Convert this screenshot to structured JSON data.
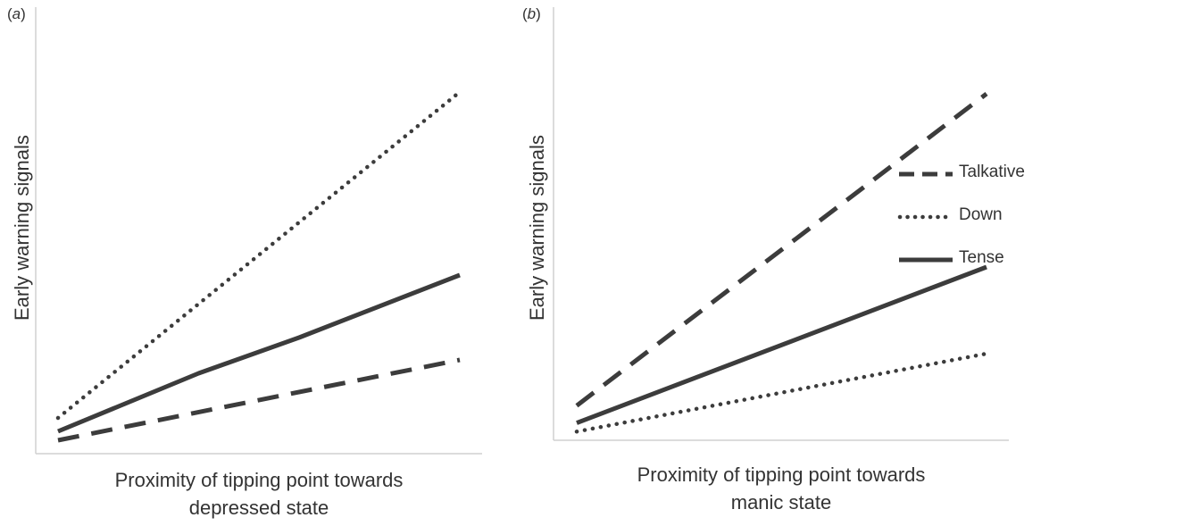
{
  "chart_data": [
    {
      "type": "line",
      "panel_label": "a",
      "ylabel": "Early warning signals",
      "xlabel_lines": [
        "Proximity of tipping point towards",
        "depressed state"
      ],
      "xlim": [
        0,
        1
      ],
      "ylim": [
        0,
        1
      ],
      "series": [
        {
          "name": "Talkative",
          "style": "dashed",
          "x": [
            0,
            1
          ],
          "y": [
            0.03,
            0.21
          ]
        },
        {
          "name": "Down",
          "style": "dotted",
          "x": [
            0,
            1
          ],
          "y": [
            0.08,
            0.81
          ]
        },
        {
          "name": "Tense",
          "style": "solid",
          "x": [
            0,
            0.35,
            0.6,
            1
          ],
          "y": [
            0.05,
            0.18,
            0.26,
            0.4
          ]
        }
      ]
    },
    {
      "type": "line",
      "panel_label": "b",
      "ylabel": "Early warning signals",
      "xlabel_lines": [
        "Proximity of tipping point towards",
        "manic state"
      ],
      "xlim": [
        0,
        1
      ],
      "ylim": [
        0,
        1
      ],
      "series": [
        {
          "name": "Talkative",
          "style": "dashed",
          "x": [
            0,
            1
          ],
          "y": [
            0.08,
            0.8
          ]
        },
        {
          "name": "Down",
          "style": "dotted",
          "x": [
            0,
            1
          ],
          "y": [
            0.02,
            0.2
          ]
        },
        {
          "name": "Tense",
          "style": "solid",
          "x": [
            0,
            1
          ],
          "y": [
            0.04,
            0.4
          ]
        }
      ]
    }
  ],
  "legend": [
    {
      "label": "Talkative",
      "style": "dashed"
    },
    {
      "label": "Down",
      "style": "dotted"
    },
    {
      "label": "Tense",
      "style": "solid"
    }
  ],
  "colors": {
    "line": "#3c3c3c",
    "axis": "#d0d0d0",
    "text": "#333333"
  }
}
